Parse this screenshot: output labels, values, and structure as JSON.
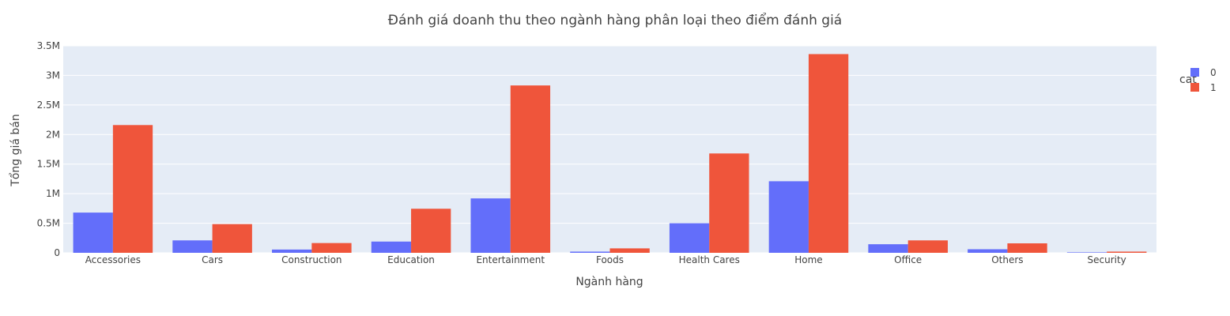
{
  "chart_data": {
    "type": "bar",
    "title": "Đánh giá doanh thu theo ngành hàng phân loại theo điểm đánh giá",
    "xlabel": "Ngành hàng",
    "ylabel": "Tổng giá bán",
    "categories": [
      "Accessories",
      "Cars",
      "Construction",
      "Education",
      "Entertainment",
      "Foods",
      "Health Cares",
      "Home",
      "Office",
      "Others",
      "Security"
    ],
    "series": [
      {
        "name": "0",
        "color": "#636efa",
        "values": [
          680000,
          210000,
          55000,
          190000,
          920000,
          20000,
          500000,
          1210000,
          145000,
          60000,
          8000
        ]
      },
      {
        "name": "1",
        "color": "#ef553b",
        "values": [
          2160000,
          485000,
          165000,
          745000,
          2830000,
          75000,
          1680000,
          3360000,
          210000,
          160000,
          20000
        ]
      }
    ],
    "ylim": [
      0,
      3500000
    ],
    "yticks": [
      0,
      500000,
      1000000,
      1500000,
      2000000,
      2500000,
      3000000,
      3500000
    ],
    "ytick_labels": [
      "0",
      "0.5M",
      "1M",
      "1.5M",
      "2M",
      "2.5M",
      "3M",
      "3.5M"
    ],
    "legend": {
      "title": "cat",
      "position": "top-right"
    },
    "grid": true,
    "plot_bg": "#e5ecf6"
  }
}
